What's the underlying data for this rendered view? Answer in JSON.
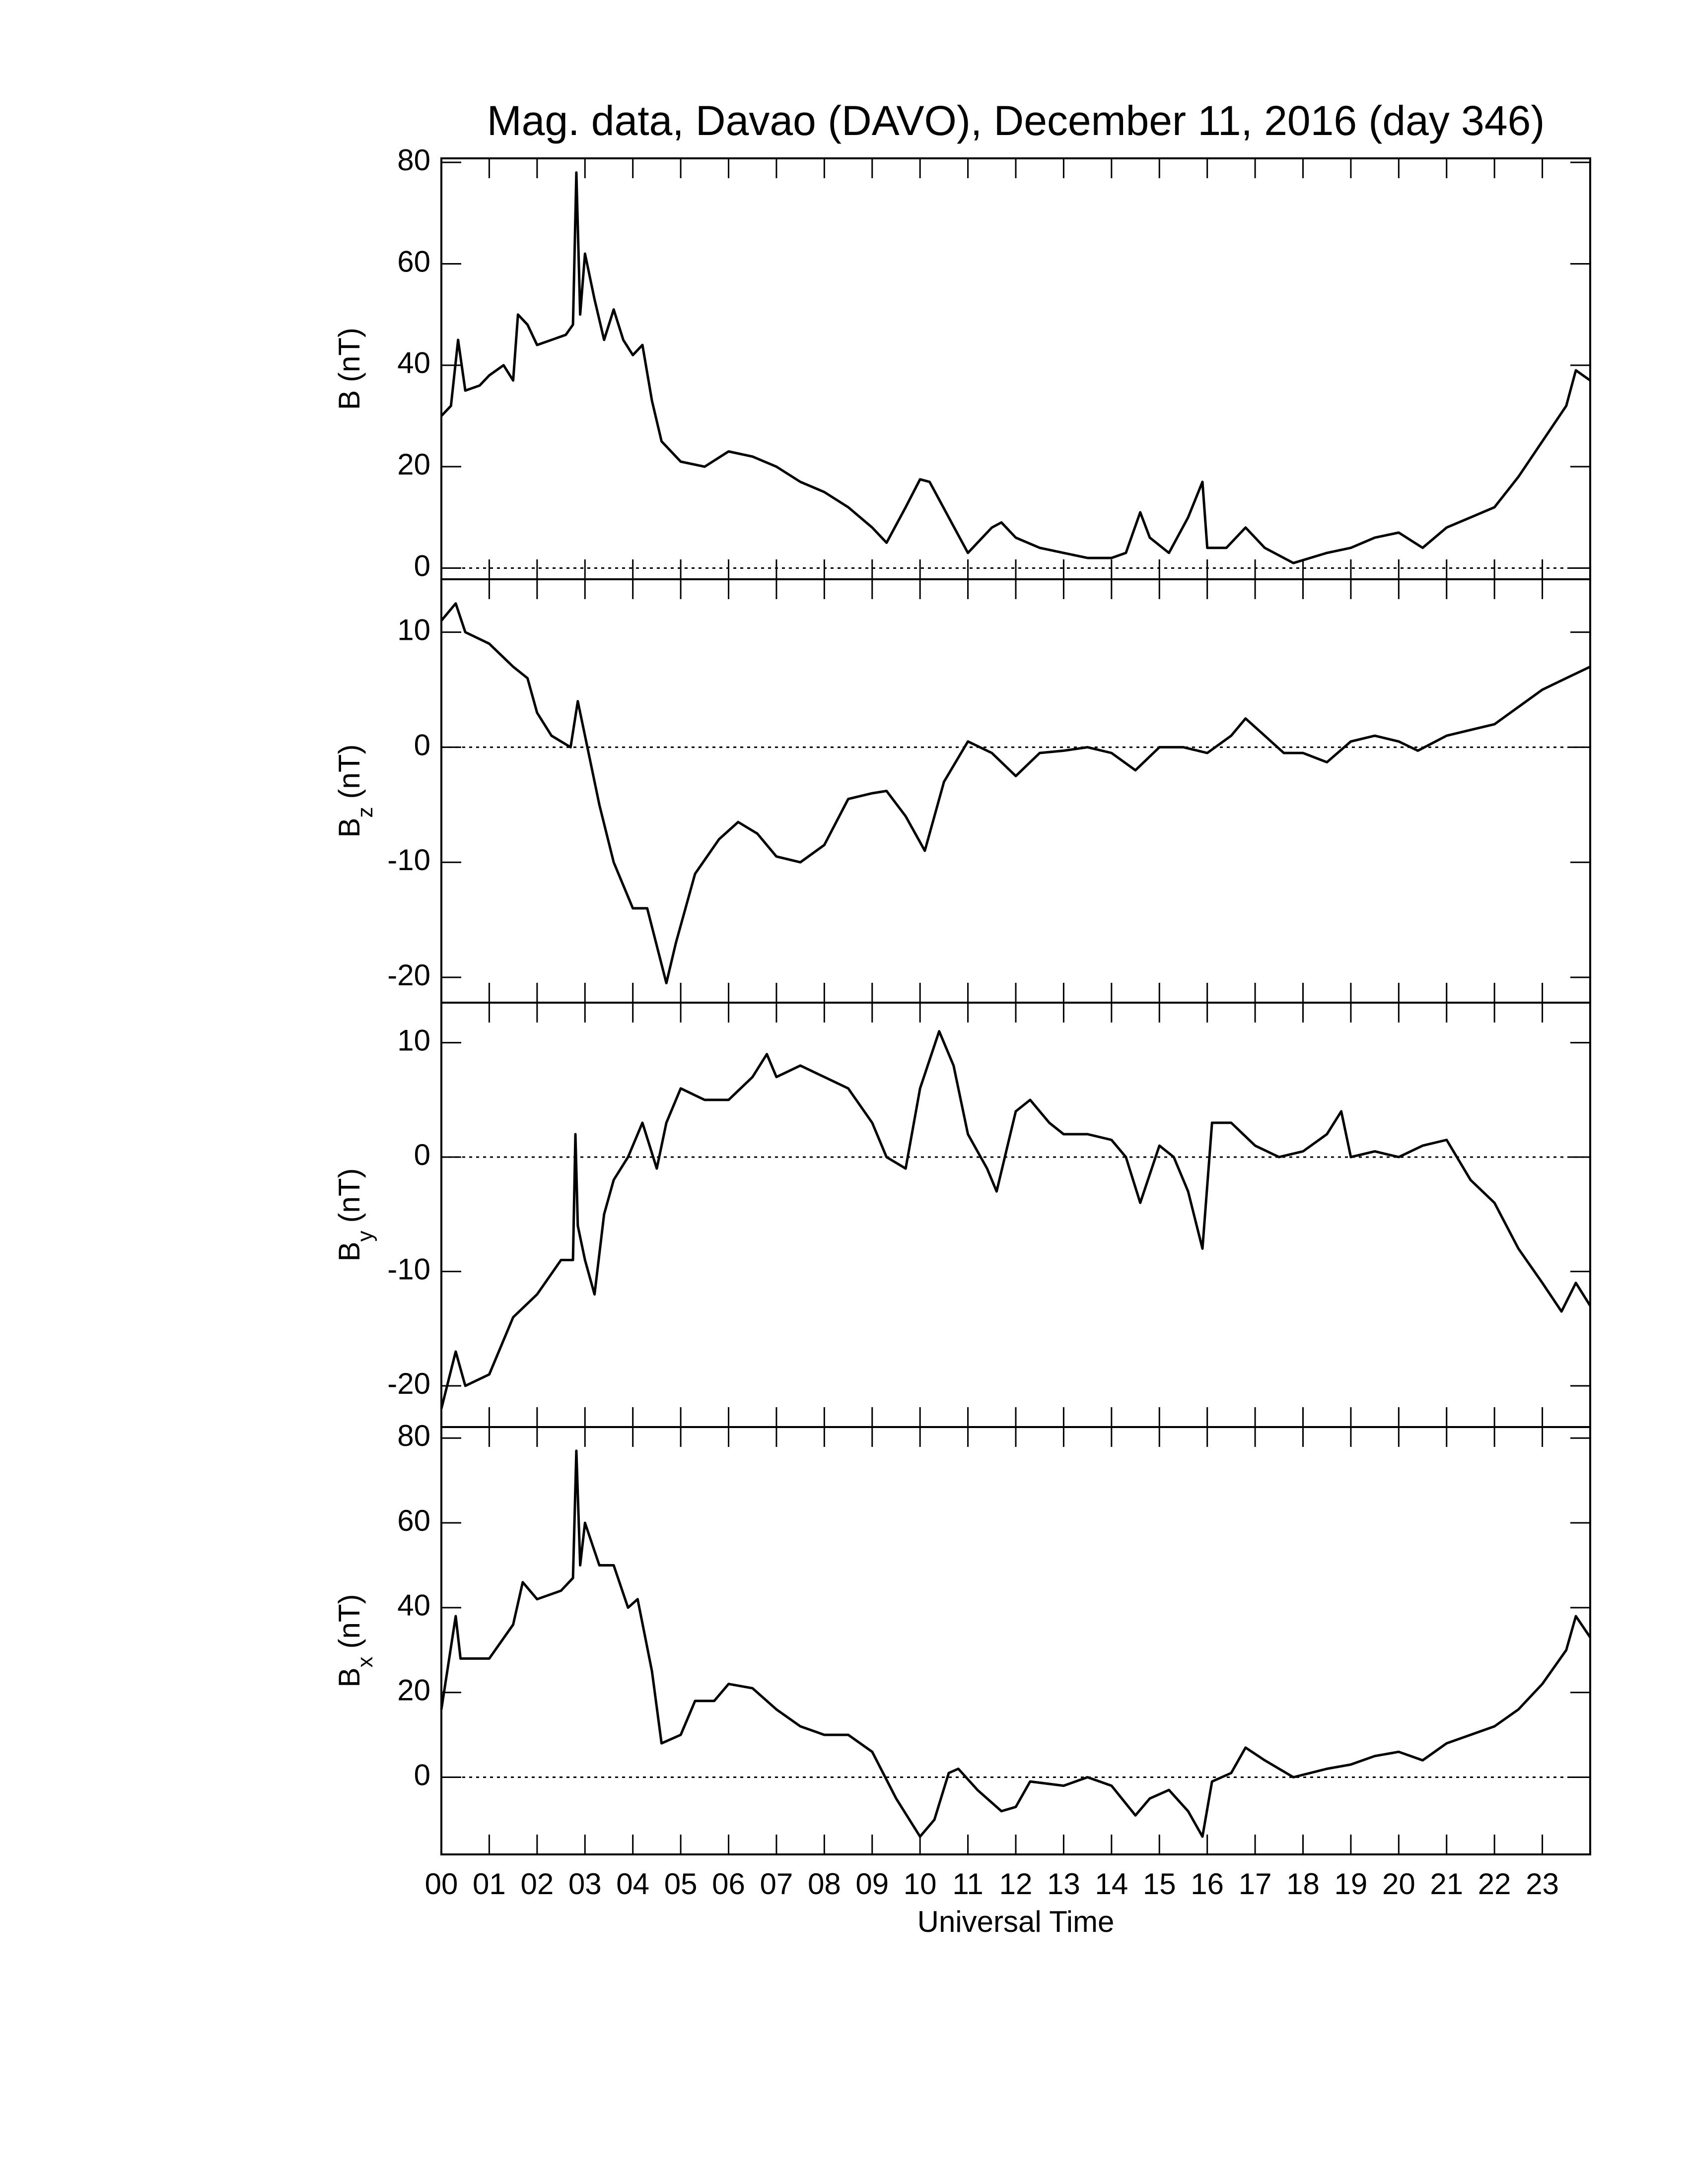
{
  "chart_data": [
    {
      "type": "line",
      "title": "Mag. data, Davao (DAVO), December 11, 2016 (day 346)",
      "ylabel": "B",
      "ylabel_unit": "(nT)",
      "color": "#000000",
      "hline": 0,
      "xlim": [
        0,
        24
      ],
      "xticks": [
        0,
        1,
        2,
        3,
        4,
        5,
        6,
        7,
        8,
        9,
        10,
        11,
        12,
        13,
        14,
        15,
        16,
        17,
        18,
        19,
        20,
        21,
        22,
        23
      ],
      "ylim": [
        -2.2,
        80.8
      ],
      "yticks": [
        0,
        20,
        40,
        60,
        80
      ],
      "x": [
        0,
        0.2,
        0.35,
        0.5,
        0.8,
        1.0,
        1.3,
        1.5,
        1.6,
        1.8,
        2.0,
        2.3,
        2.6,
        2.75,
        2.82,
        2.9,
        3.0,
        3.2,
        3.4,
        3.6,
        3.8,
        4.0,
        4.2,
        4.4,
        4.6,
        5.0,
        5.5,
        6.0,
        6.5,
        7.0,
        7.5,
        8.0,
        8.5,
        9.0,
        9.3,
        9.7,
        10.0,
        10.2,
        10.6,
        11.0,
        11.5,
        11.7,
        12.0,
        12.5,
        13.0,
        13.5,
        14.0,
        14.3,
        14.6,
        14.8,
        15.2,
        15.6,
        15.9,
        16.0,
        16.4,
        16.8,
        17.2,
        17.8,
        18.5,
        19.0,
        19.5,
        20.0,
        20.5,
        21.0,
        21.5,
        22.0,
        22.5,
        23.0,
        23.5,
        23.7,
        24
      ],
      "values": [
        30,
        32,
        45,
        35,
        36,
        38,
        40,
        37,
        50,
        48,
        44,
        45,
        46,
        48,
        78,
        50,
        62,
        53,
        45,
        51,
        45,
        42,
        44,
        33,
        25,
        21,
        20,
        23,
        22,
        20,
        17,
        15,
        12,
        8,
        5,
        12,
        17.5,
        17,
        10,
        3,
        8,
        9,
        6,
        4,
        3,
        2,
        2,
        3,
        11,
        6,
        3,
        10,
        17,
        4,
        4,
        8,
        4,
        1,
        3,
        4,
        6,
        7,
        4,
        8,
        10,
        12,
        18,
        25,
        32,
        39,
        37
      ]
    },
    {
      "type": "line",
      "ylabel": "B",
      "ylabel_sub": "z",
      "ylabel_unit": "(nT)",
      "color": "#000000",
      "hline": 0,
      "xlim": [
        0,
        24
      ],
      "xticks": [
        0,
        1,
        2,
        3,
        4,
        5,
        6,
        7,
        8,
        9,
        10,
        11,
        12,
        13,
        14,
        15,
        16,
        17,
        18,
        19,
        20,
        21,
        22,
        23
      ],
      "ylim": [
        -22.2,
        14.6
      ],
      "yticks": [
        -20,
        -10,
        0,
        10
      ],
      "x": [
        0,
        0.3,
        0.5,
        1.0,
        1.5,
        1.8,
        2.0,
        2.3,
        2.7,
        2.85,
        3.0,
        3.3,
        3.6,
        4.0,
        4.3,
        4.7,
        4.9,
        5.3,
        5.8,
        6.2,
        6.6,
        7.0,
        7.5,
        8.0,
        8.5,
        9.0,
        9.3,
        9.7,
        10.1,
        10.5,
        11.0,
        11.5,
        12.0,
        12.5,
        13.0,
        13.5,
        14.0,
        14.5,
        15.0,
        15.5,
        16.0,
        16.5,
        16.8,
        17.2,
        17.6,
        18.0,
        18.5,
        19.0,
        19.5,
        20.0,
        20.4,
        21.0,
        21.5,
        22.0,
        22.5,
        23.0,
        23.5,
        24
      ],
      "values": [
        11,
        12.5,
        10,
        9,
        7,
        6,
        3,
        1,
        0,
        4,
        1,
        -5,
        -10,
        -14,
        -14,
        -20.5,
        -17,
        -11,
        -8,
        -6.5,
        -7.5,
        -9.5,
        -10,
        -8.5,
        -4.5,
        -4,
        -3.8,
        -6,
        -9,
        -3,
        0.5,
        -0.5,
        -2.5,
        -0.5,
        -0.3,
        0,
        -0.5,
        -2,
        0,
        0,
        -0.5,
        1,
        2.5,
        1,
        -0.5,
        -0.5,
        -1.3,
        0.5,
        1,
        0.5,
        -0.3,
        1,
        1.5,
        2,
        3.5,
        5,
        6,
        7
      ]
    },
    {
      "type": "line",
      "ylabel": "B",
      "ylabel_sub": "y",
      "ylabel_unit": "(nT)",
      "color": "#000000",
      "hline": 0,
      "xlim": [
        0,
        24
      ],
      "xticks": [
        0,
        1,
        2,
        3,
        4,
        5,
        6,
        7,
        8,
        9,
        10,
        11,
        12,
        13,
        14,
        15,
        16,
        17,
        18,
        19,
        20,
        21,
        22,
        23
      ],
      "ylim": [
        -23.6,
        13.5
      ],
      "yticks": [
        -20,
        -10,
        0,
        10
      ],
      "x": [
        0,
        0.3,
        0.5,
        1.0,
        1.5,
        2.0,
        2.5,
        2.75,
        2.8,
        2.85,
        3.0,
        3.2,
        3.4,
        3.6,
        3.9,
        4.2,
        4.5,
        4.7,
        5.0,
        5.5,
        6.0,
        6.5,
        6.8,
        7.0,
        7.5,
        8.0,
        8.5,
        9.0,
        9.3,
        9.7,
        10.0,
        10.4,
        10.7,
        11.0,
        11.4,
        11.6,
        12.0,
        12.3,
        12.7,
        13.0,
        13.5,
        14.0,
        14.3,
        14.6,
        15.0,
        15.3,
        15.6,
        15.9,
        16.1,
        16.5,
        17.0,
        17.5,
        18.0,
        18.5,
        18.8,
        19.0,
        19.5,
        20.0,
        20.5,
        21.0,
        21.5,
        22.0,
        22.5,
        23.0,
        23.4,
        23.7,
        24
      ],
      "values": [
        -22,
        -17,
        -20,
        -19,
        -14,
        -12,
        -9,
        -9,
        2,
        -6,
        -9,
        -12,
        -5,
        -2,
        0,
        3,
        -1,
        3,
        6,
        5,
        5,
        7,
        9,
        7,
        8,
        7,
        6,
        3,
        0,
        -1,
        6,
        11,
        8,
        2,
        -1,
        -3,
        4,
        5,
        3,
        2,
        2,
        1.5,
        0,
        -4,
        1,
        0,
        -3,
        -8,
        3,
        3,
        1,
        0,
        0.5,
        2,
        4,
        0,
        0.5,
        0,
        1,
        1.5,
        -2,
        -4,
        -8,
        -11,
        -13.5,
        -11,
        -13
      ]
    },
    {
      "type": "line",
      "ylabel": "B",
      "ylabel_sub": "x",
      "ylabel_unit": "(nT)",
      "xlabel": "Universal Time",
      "color": "#000000",
      "hline": 0,
      "xlim": [
        0,
        24
      ],
      "xticks": [
        {
          "value": 0,
          "label": "00"
        },
        {
          "value": 1,
          "label": "01"
        },
        {
          "value": 2,
          "label": "02"
        },
        {
          "value": 3,
          "label": "03"
        },
        {
          "value": 4,
          "label": "04"
        },
        {
          "value": 5,
          "label": "05"
        },
        {
          "value": 6,
          "label": "06"
        },
        {
          "value": 7,
          "label": "07"
        },
        {
          "value": 8,
          "label": "08"
        },
        {
          "value": 9,
          "label": "09"
        },
        10,
        11,
        12,
        13,
        14,
        15,
        16,
        17,
        18,
        19,
        20,
        21,
        22,
        23
      ],
      "ylim": [
        -18.2,
        82.6
      ],
      "yticks": [
        0,
        20,
        40,
        60,
        80
      ],
      "x": [
        0,
        0.3,
        0.4,
        1.0,
        1.5,
        1.7,
        2.0,
        2.5,
        2.75,
        2.82,
        2.9,
        3.0,
        3.3,
        3.6,
        3.9,
        4.1,
        4.4,
        4.6,
        5.0,
        5.3,
        5.7,
        6.0,
        6.5,
        7.0,
        7.5,
        8.0,
        8.5,
        9.0,
        9.5,
        10.0,
        10.3,
        10.6,
        10.8,
        11.2,
        11.7,
        12.0,
        12.3,
        13.0,
        13.5,
        14.0,
        14.5,
        14.8,
        15.2,
        15.6,
        15.9,
        16.1,
        16.5,
        16.8,
        17.2,
        17.8,
        18.5,
        19.0,
        19.5,
        20.0,
        20.5,
        21.0,
        21.5,
        22.0,
        22.5,
        23.0,
        23.5,
        23.7,
        24
      ],
      "values": [
        16,
        38,
        28,
        28,
        36,
        46,
        42,
        44,
        47,
        77,
        50,
        60,
        50,
        50,
        40,
        42,
        25,
        8,
        10,
        18,
        18,
        22,
        21,
        16,
        12,
        10,
        10,
        6,
        -5,
        -14,
        -10,
        1,
        2,
        -3,
        -8,
        -7,
        -1,
        -2,
        0,
        -2,
        -9,
        -5,
        -3,
        -8,
        -14,
        -1,
        1,
        7,
        4,
        0,
        2,
        3,
        5,
        6,
        4,
        8,
        10,
        12,
        16,
        22,
        30,
        38,
        33
      ]
    }
  ]
}
